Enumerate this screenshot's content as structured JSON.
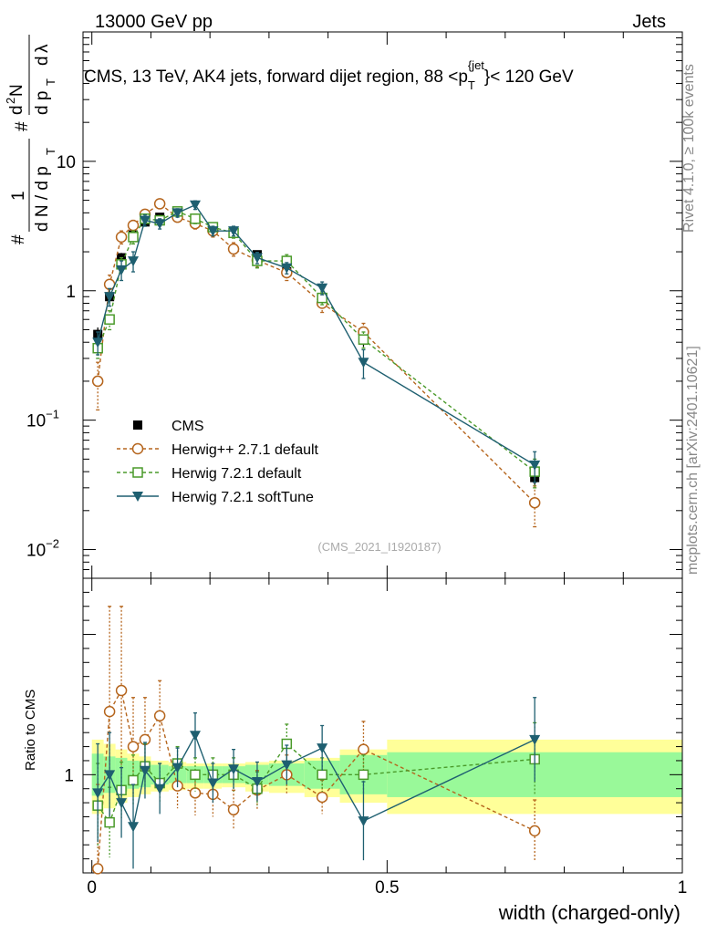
{
  "header": {
    "energy_label": "13000 GeV pp",
    "category_label": "Jets",
    "title_main": "CMS, 13 TeV, AK4 jets, forward dijet region, 88 <p",
    "title_sup": "{jet",
    "title_sub": "T",
    "title_end": "}< 120 GeV",
    "watermark": "(CMS_2021_I1920187)",
    "side_rivet": "Rivet 4.1.0, ≥ 100k events",
    "side_mcplots": "mcplots.cern.ch [arXiv:2401.10621]"
  },
  "chart_data": {
    "type": "line",
    "xlabel": "width (charged-only)",
    "ylabel": "1/dN/dp_T · d²N/dp_T dλ",
    "ylabel_parts": [
      "#",
      "1",
      "d N / d p",
      "T",
      "#",
      "d",
      "2",
      "N",
      "d p",
      "T",
      "d",
      "λ"
    ],
    "ratio_ylabel": "Ratio to CMS",
    "xlim": [
      -0.015,
      1.0
    ],
    "ylim": [
      0.006,
      100
    ],
    "yscale": "log",
    "ratio_ylim": [
      0.3,
      2.4
    ],
    "x_ticks": [
      "0",
      "0.5",
      "1"
    ],
    "y_ticks": [
      {
        "value": 10,
        "label": "10"
      },
      {
        "value": 1,
        "label": "1"
      },
      {
        "value": 0.1,
        "label": "10",
        "exp": "−1"
      },
      {
        "value": 0.01,
        "label": "10",
        "exp": "−2"
      }
    ],
    "ratio_ticks": [
      {
        "value": 1,
        "label": "1"
      }
    ],
    "bin_edges": [
      0,
      0.02,
      0.04,
      0.06,
      0.08,
      0.1,
      0.13,
      0.16,
      0.19,
      0.22,
      0.26,
      0.3,
      0.36,
      0.42,
      0.5,
      1.0
    ],
    "x": [
      0.01,
      0.03,
      0.05,
      0.07,
      0.09,
      0.115,
      0.145,
      0.175,
      0.205,
      0.24,
      0.28,
      0.33,
      0.39,
      0.46,
      0.75
    ],
    "band_inner": [
      [
        0.85,
        1.15
      ],
      [
        0.87,
        1.13
      ],
      [
        0.88,
        1.12
      ],
      [
        0.9,
        1.1
      ],
      [
        0.91,
        1.09
      ],
      [
        0.93,
        1.07
      ],
      [
        0.94,
        1.06
      ],
      [
        0.94,
        1.06
      ],
      [
        0.94,
        1.06
      ],
      [
        0.94,
        1.06
      ],
      [
        0.93,
        1.07
      ],
      [
        0.92,
        1.08
      ],
      [
        0.9,
        1.1
      ],
      [
        0.86,
        1.14
      ],
      [
        0.84,
        1.16
      ]
    ],
    "band_outer": [
      [
        0.72,
        1.25
      ],
      [
        0.76,
        1.22
      ],
      [
        0.8,
        1.18
      ],
      [
        0.84,
        1.15
      ],
      [
        0.86,
        1.13
      ],
      [
        0.88,
        1.1
      ],
      [
        0.89,
        1.09
      ],
      [
        0.9,
        1.08
      ],
      [
        0.9,
        1.08
      ],
      [
        0.91,
        1.08
      ],
      [
        0.88,
        1.09
      ],
      [
        0.87,
        1.1
      ],
      [
        0.84,
        1.12
      ],
      [
        0.8,
        1.18
      ],
      [
        0.72,
        1.25
      ]
    ],
    "series": [
      {
        "name": "CMS",
        "style": "data",
        "color": "#000000",
        "values": [
          0.46,
          0.9,
          1.8,
          2.7,
          3.4,
          3.7,
          3.8,
          3.6,
          3.1,
          2.8,
          1.9,
          1.4,
          0.88,
          0.42,
          0.036
        ],
        "err": [
          0.06,
          0.1,
          0.16,
          0.2,
          0.22,
          0.22,
          0.2,
          0.2,
          0.18,
          0.18,
          0.14,
          0.12,
          0.08,
          0.05,
          0.005
        ],
        "ratio": [
          1,
          1,
          1,
          1,
          1,
          1,
          1,
          1,
          1,
          1,
          1,
          1,
          1,
          1,
          1
        ]
      },
      {
        "name": "Herwig++ 2.7.1 default",
        "style": "dashed",
        "marker": "circle",
        "color": "#b5651d",
        "values": [
          0.2,
          1.12,
          2.6,
          3.2,
          3.9,
          4.7,
          3.7,
          3.3,
          2.9,
          2.1,
          1.72,
          1.38,
          0.8,
          0.48,
          0.023
        ],
        "err": [
          0.08,
          0.2,
          0.3,
          0.3,
          0.3,
          0.35,
          0.3,
          0.3,
          0.3,
          0.25,
          0.2,
          0.18,
          0.12,
          0.08,
          0.008
        ],
        "ratio": [
          0.33,
          1.45,
          1.6,
          1.2,
          1.25,
          1.42,
          0.92,
          0.87,
          0.86,
          0.75,
          0.89,
          1.0,
          0.84,
          1.18,
          0.6
        ],
        "ratio_err": [
          0.6,
          0.75,
          0.6,
          0.35,
          0.3,
          0.25,
          0.16,
          0.16,
          0.16,
          0.14,
          0.14,
          0.14,
          0.12,
          0.2,
          0.22
        ]
      },
      {
        "name": "Herwig 7.2.1 default",
        "style": "dashed",
        "marker": "square",
        "color": "#4a9a2a",
        "values": [
          0.36,
          0.6,
          1.6,
          2.6,
          3.6,
          3.5,
          4.1,
          3.6,
          3.1,
          2.8,
          1.7,
          1.7,
          0.88,
          0.42,
          0.04
        ],
        "err": [
          0.06,
          0.1,
          0.2,
          0.3,
          0.3,
          0.3,
          0.3,
          0.3,
          0.25,
          0.25,
          0.2,
          0.2,
          0.1,
          0.06,
          0.01
        ],
        "ratio": [
          0.78,
          0.66,
          0.89,
          0.96,
          1.06,
          0.94,
          1.08,
          1.0,
          1.0,
          1.0,
          0.9,
          1.22,
          1.0,
          1.0,
          1.11
        ],
        "ratio_err": [
          0.3,
          0.25,
          0.2,
          0.18,
          0.16,
          0.14,
          0.12,
          0.12,
          0.12,
          0.12,
          0.12,
          0.14,
          0.12,
          0.14,
          0.26
        ]
      },
      {
        "name": "Herwig 7.2.1 softTune",
        "style": "solid",
        "marker": "triangle-down",
        "color": "#1e5f70",
        "values": [
          0.4,
          0.9,
          1.45,
          1.7,
          3.5,
          3.3,
          4.0,
          4.6,
          2.9,
          2.9,
          1.8,
          1.5,
          1.05,
          0.28,
          0.045
        ],
        "err": [
          0.08,
          0.14,
          0.25,
          0.3,
          0.35,
          0.3,
          0.3,
          0.35,
          0.25,
          0.25,
          0.18,
          0.15,
          0.12,
          0.07,
          0.012
        ],
        "ratio": [
          0.87,
          1.0,
          0.8,
          0.63,
          1.03,
          0.9,
          1.05,
          1.28,
          0.94,
          1.04,
          0.95,
          1.07,
          1.19,
          0.67,
          1.25
        ],
        "ratio_err": [
          0.35,
          0.3,
          0.25,
          0.3,
          0.2,
          0.18,
          0.14,
          0.16,
          0.14,
          0.14,
          0.14,
          0.14,
          0.16,
          0.28,
          0.3
        ]
      }
    ],
    "legend_position": "middle-left"
  }
}
